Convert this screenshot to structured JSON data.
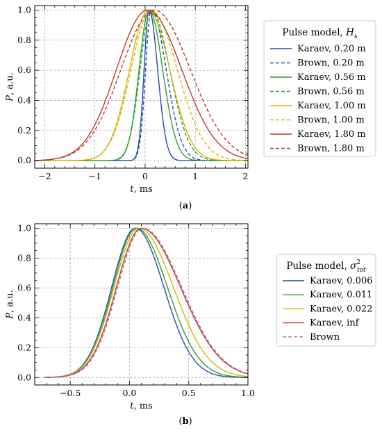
{
  "chart_data": [
    {
      "panel_label": "a",
      "type": "line",
      "xlabel_var": "t",
      "xlabel_unit": ", ms",
      "ylabel_var": "P",
      "ylabel_unit": ", a.u.",
      "xlim": [
        -2.2,
        2.05
      ],
      "ylim": [
        -0.05,
        1.03
      ],
      "xticks": [
        -2,
        -1,
        0,
        1,
        2
      ],
      "xtick_labels": [
        "−2",
        "−1",
        "0",
        "1",
        "2"
      ],
      "yticks": [
        0.0,
        0.2,
        0.4,
        0.6,
        0.8,
        1.0
      ],
      "ytick_labels": [
        "0.0",
        "0.2",
        "0.4",
        "0.6",
        "0.8",
        "1.0"
      ],
      "grid": true,
      "legend_title_text": "Pulse model, ",
      "legend_title_math": "H",
      "legend_title_sub": "s",
      "legend_position": "right, outside",
      "series": [
        {
          "name": "Karaev, 0.20 m",
          "color": "#1f4ea8",
          "style": "solid",
          "peak_t": 0.08,
          "sigma_left": 0.1,
          "sigma_right": 0.17,
          "x_start": -2.2,
          "x_end": 2.05
        },
        {
          "name": "Brown, 0.20 m",
          "color": "#1f4ea8",
          "style": "dashed",
          "peak_t": 0.12,
          "sigma_left": 0.11,
          "sigma_right": 0.3,
          "x_start": -2.2,
          "x_end": 2.05
        },
        {
          "name": "Karaev, 0.56 m",
          "color": "#2ca02c",
          "style": "solid",
          "peak_t": 0.08,
          "sigma_left": 0.2,
          "sigma_right": 0.27,
          "x_start": -2.2,
          "x_end": 2.05
        },
        {
          "name": "Brown, 0.56 m",
          "color": "#2ca02c",
          "style": "dashed",
          "peak_t": 0.12,
          "sigma_left": 0.22,
          "sigma_right": 0.37,
          "x_start": -2.2,
          "x_end": 2.05
        },
        {
          "name": "Karaev, 1.00 m",
          "color": "#d6b400",
          "style": "solid",
          "peak_t": 0.07,
          "sigma_left": 0.38,
          "sigma_right": 0.42,
          "x_start": -2.2,
          "x_end": 2.05
        },
        {
          "name": "Brown, 1.00 m",
          "color": "#d6b400",
          "style": "dashed",
          "peak_t": 0.12,
          "sigma_left": 0.4,
          "sigma_right": 0.52,
          "x_start": -2.2,
          "x_end": 2.05
        },
        {
          "name": "Karaev, 1.80 m",
          "color": "#c0392b",
          "style": "solid",
          "peak_t": 0.05,
          "sigma_left": 0.62,
          "sigma_right": 0.68,
          "x_start": -2.2,
          "x_end": 2.05
        },
        {
          "name": "Brown, 1.80 m",
          "color": "#c0392b",
          "style": "dashed",
          "peak_t": 0.18,
          "sigma_left": 0.66,
          "sigma_right": 0.72,
          "x_start": -2.2,
          "x_end": 2.05
        }
      ]
    },
    {
      "panel_label": "b",
      "type": "line",
      "xlabel_var": "t",
      "xlabel_unit": ", ms",
      "ylabel_var": "P",
      "ylabel_unit": ", a.u.",
      "xlim": [
        -0.8,
        1.0
      ],
      "ylim": [
        -0.05,
        1.03
      ],
      "xticks": [
        -0.5,
        0.0,
        0.5,
        1.0
      ],
      "xtick_labels": [
        "−0.5",
        "0.0",
        "0.5",
        "1.0"
      ],
      "yticks": [
        0.0,
        0.2,
        0.4,
        0.6,
        0.8,
        1.0
      ],
      "ytick_labels": [
        "0.0",
        "0.2",
        "0.4",
        "0.6",
        "0.8",
        "1.0"
      ],
      "grid": true,
      "legend_title_text": "Pulse model, ",
      "legend_title_math": "σ",
      "legend_title_sub": "tot",
      "legend_title_sup": "2",
      "legend_position": "right, outside",
      "series": [
        {
          "name": "Karaev, 0.006",
          "color": "#1f4ea8",
          "style": "solid",
          "peak_t": 0.05,
          "sigma_left": 0.2,
          "sigma_right": 0.24,
          "x_start": -0.72,
          "x_end": 1.0
        },
        {
          "name": "Karaev, 0.011",
          "color": "#2ca02c",
          "style": "solid",
          "peak_t": 0.06,
          "sigma_left": 0.2,
          "sigma_right": 0.26,
          "x_start": -0.72,
          "x_end": 1.0
        },
        {
          "name": "Karaev, 0.022",
          "color": "#d6b400",
          "style": "solid",
          "peak_t": 0.08,
          "sigma_left": 0.21,
          "sigma_right": 0.29,
          "x_start": -0.72,
          "x_end": 1.0
        },
        {
          "name": "Karaev, inf",
          "color": "#c0392b",
          "style": "solid",
          "peak_t": 0.1,
          "sigma_left": 0.21,
          "sigma_right": 0.33,
          "x_start": -0.72,
          "x_end": 1.0
        },
        {
          "name": "Brown",
          "color": "#a86aa8",
          "style": "dashed",
          "peak_t": 0.11,
          "sigma_left": 0.21,
          "sigma_right": 0.33,
          "x_start": -0.72,
          "x_end": 1.0
        }
      ]
    }
  ]
}
